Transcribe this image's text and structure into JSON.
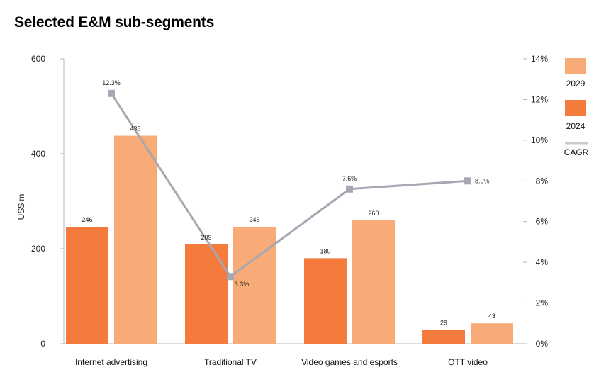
{
  "title": "Selected E&M sub-segments",
  "chart_data": {
    "type": "bar",
    "categories": [
      "Internet advertising",
      "Traditional TV",
      "Video games and esports",
      "OTT video"
    ],
    "series": [
      {
        "name": "2024",
        "values": [
          246,
          209,
          180,
          29
        ],
        "color": "#f47b3c"
      },
      {
        "name": "2029",
        "values": [
          438,
          246,
          260,
          43
        ],
        "color": "#f8ab76"
      }
    ],
    "line_series": {
      "name": "CAGR",
      "values": [
        12.3,
        3.3,
        7.6,
        8.0
      ],
      "labels": [
        "12.3%",
        "3.3%",
        "7.6%",
        "8.0%"
      ],
      "color": "#a4a8b3",
      "axis": "right"
    },
    "ylabel": "US$ m",
    "ylim": [
      0,
      600
    ],
    "yticks": [
      0,
      200,
      400,
      600
    ],
    "y2lim": [
      0,
      14
    ],
    "y2ticks": [
      "0%",
      "2%",
      "4%",
      "6%",
      "8%",
      "10%",
      "12%",
      "14%"
    ],
    "legend": [
      "2029",
      "2024",
      "CAGR"
    ],
    "legend_position": "right"
  }
}
